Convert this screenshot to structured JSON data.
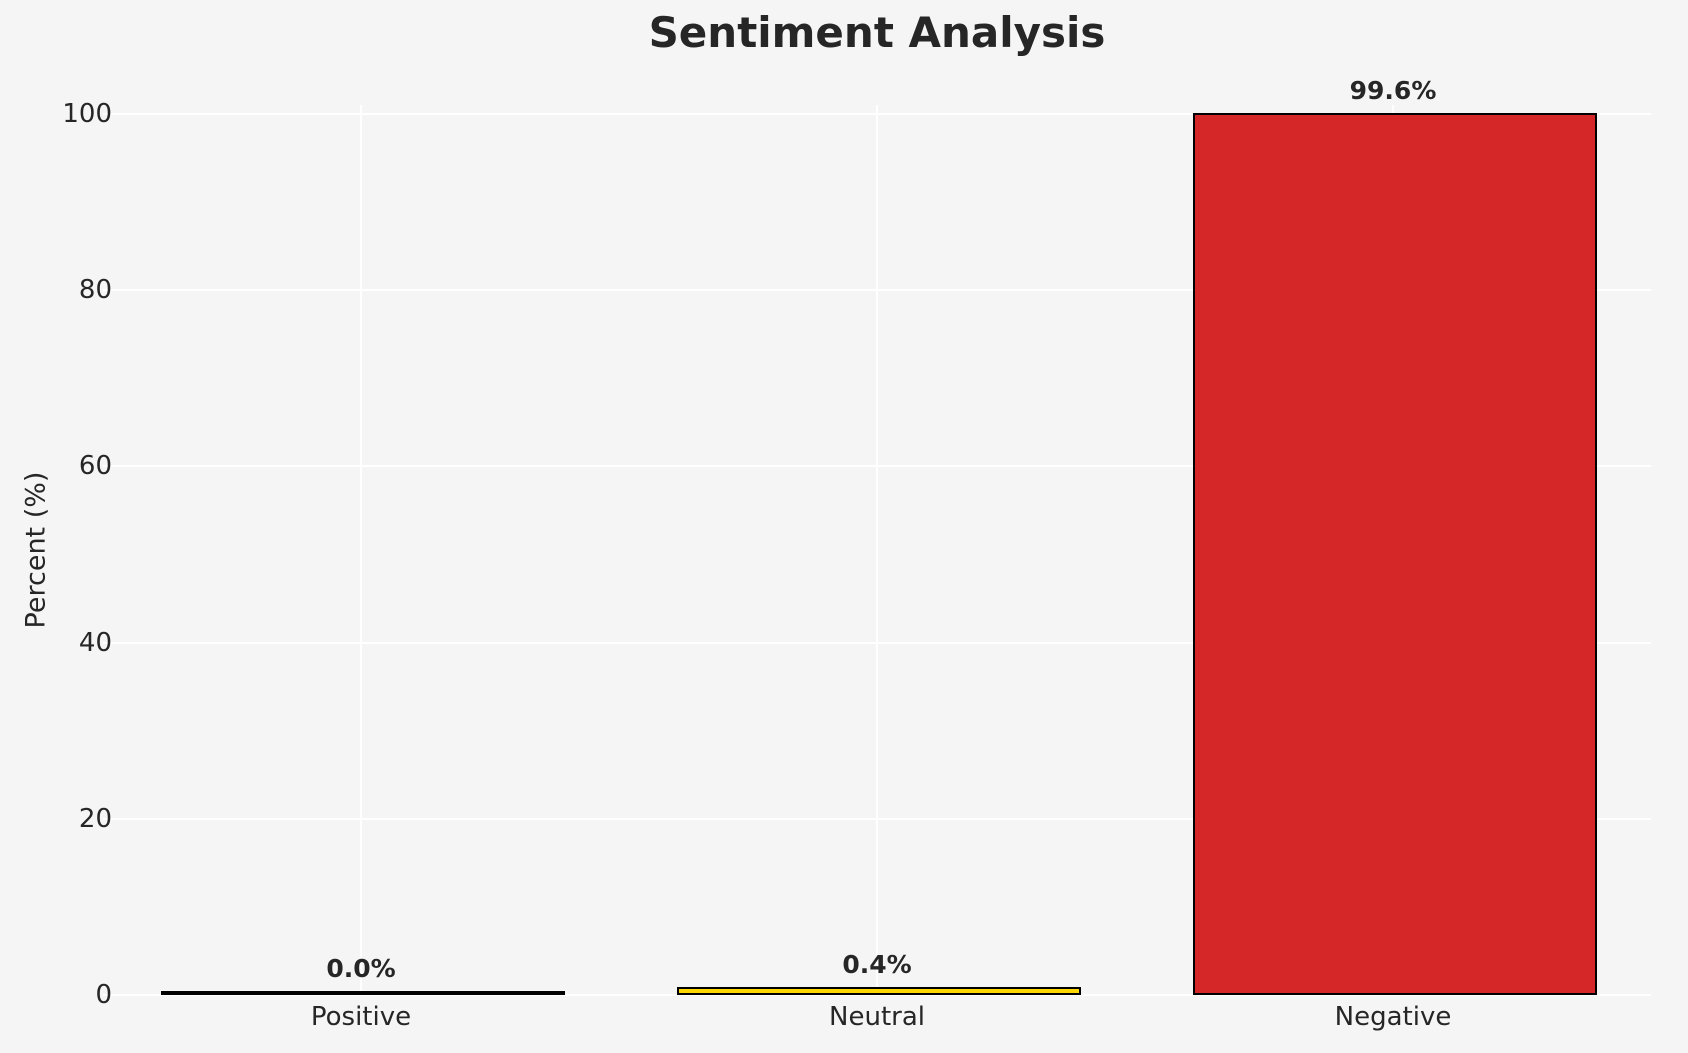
{
  "chart_data": {
    "type": "bar",
    "title": "Sentiment Analysis",
    "xlabel": "",
    "ylabel": "Percent (%)",
    "categories": [
      "Positive",
      "Neutral",
      "Negative"
    ],
    "values": [
      0.0,
      0.4,
      99.6
    ],
    "value_labels": [
      "0.0%",
      "0.4%",
      "99.6%"
    ],
    "yticks": [
      0,
      20,
      40,
      60,
      80,
      100
    ],
    "ytick_labels": [
      "0",
      "20",
      "40",
      "60",
      "80",
      "100"
    ],
    "ylim": [
      0,
      101
    ],
    "grid": true,
    "legend": false,
    "colors": {
      "bar_fills": [
        "none",
        "#ffd700",
        "#d62728"
      ],
      "bar_edge": "#000000",
      "background": "#f5f5f6",
      "gridline": "#ffffff",
      "text": "#262626"
    }
  }
}
